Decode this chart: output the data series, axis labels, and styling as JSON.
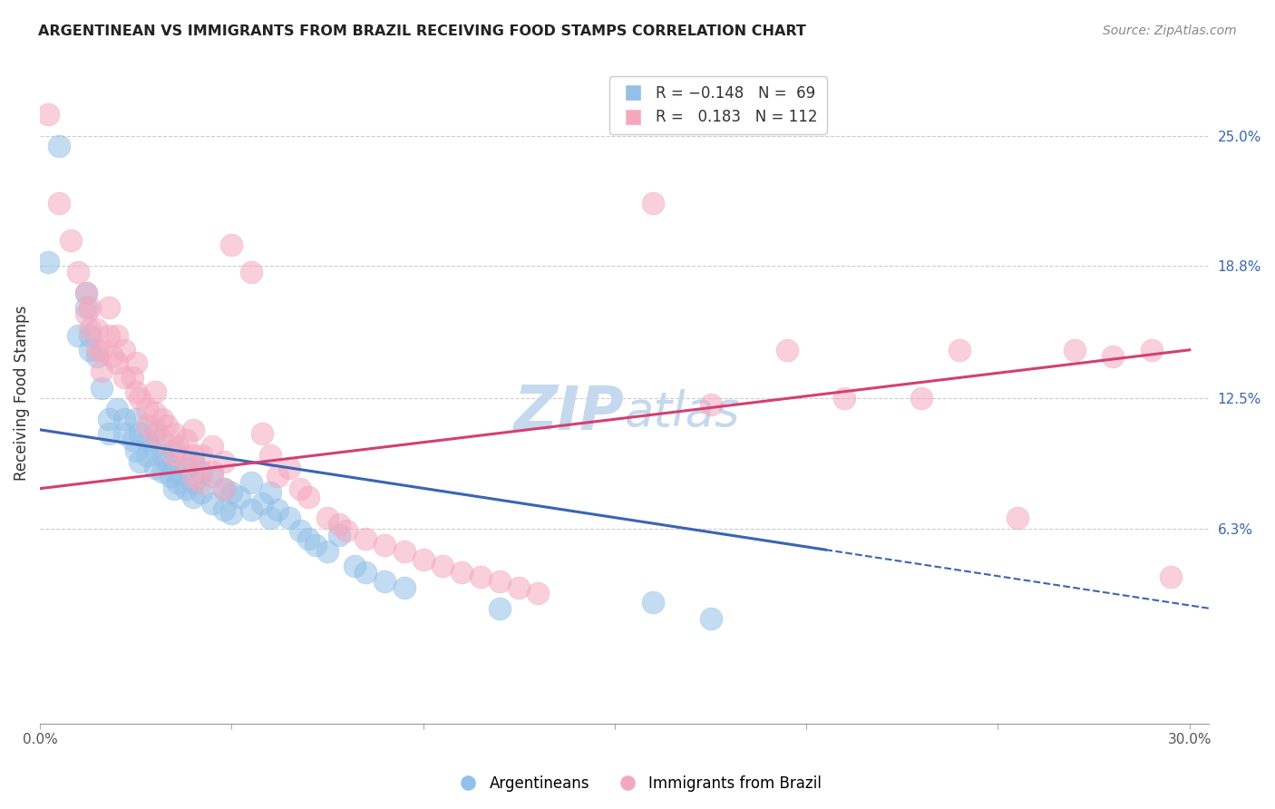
{
  "title": "ARGENTINEAN VS IMMIGRANTS FROM BRAZIL RECEIVING FOOD STAMPS CORRELATION CHART",
  "source": "Source: ZipAtlas.com",
  "ylabel": "Receiving Food Stamps",
  "ytick_labels": [
    "25.0%",
    "18.8%",
    "12.5%",
    "6.3%"
  ],
  "ytick_values": [
    0.25,
    0.188,
    0.125,
    0.063
  ],
  "xmin": 0.0,
  "xmax": 0.3,
  "ymin": -0.03,
  "ymax": 0.285,
  "color_blue": "#92C0E8",
  "color_pink": "#F4A8BE",
  "color_blue_line": "#3A65B0",
  "color_pink_line": "#D44070",
  "watermark_color": "#C5D8EE",
  "blue_scatter": [
    [
      0.002,
      0.19
    ],
    [
      0.005,
      0.245
    ],
    [
      0.01,
      0.155
    ],
    [
      0.012,
      0.175
    ],
    [
      0.012,
      0.168
    ],
    [
      0.013,
      0.155
    ],
    [
      0.013,
      0.148
    ],
    [
      0.015,
      0.145
    ],
    [
      0.016,
      0.13
    ],
    [
      0.018,
      0.115
    ],
    [
      0.018,
      0.108
    ],
    [
      0.02,
      0.12
    ],
    [
      0.022,
      0.115
    ],
    [
      0.022,
      0.108
    ],
    [
      0.024,
      0.105
    ],
    [
      0.025,
      0.115
    ],
    [
      0.025,
      0.1
    ],
    [
      0.026,
      0.108
    ],
    [
      0.026,
      0.095
    ],
    [
      0.028,
      0.105
    ],
    [
      0.028,
      0.098
    ],
    [
      0.03,
      0.11
    ],
    [
      0.03,
      0.102
    ],
    [
      0.03,
      0.092
    ],
    [
      0.032,
      0.098
    ],
    [
      0.032,
      0.09
    ],
    [
      0.033,
      0.095
    ],
    [
      0.034,
      0.088
    ],
    [
      0.035,
      0.1
    ],
    [
      0.035,
      0.09
    ],
    [
      0.035,
      0.082
    ],
    [
      0.036,
      0.085
    ],
    [
      0.038,
      0.092
    ],
    [
      0.038,
      0.082
    ],
    [
      0.04,
      0.095
    ],
    [
      0.04,
      0.085
    ],
    [
      0.04,
      0.078
    ],
    [
      0.042,
      0.09
    ],
    [
      0.042,
      0.08
    ],
    [
      0.045,
      0.088
    ],
    [
      0.045,
      0.075
    ],
    [
      0.048,
      0.082
    ],
    [
      0.048,
      0.072
    ],
    [
      0.05,
      0.08
    ],
    [
      0.05,
      0.07
    ],
    [
      0.052,
      0.078
    ],
    [
      0.055,
      0.085
    ],
    [
      0.055,
      0.072
    ],
    [
      0.058,
      0.075
    ],
    [
      0.06,
      0.08
    ],
    [
      0.06,
      0.068
    ],
    [
      0.062,
      0.072
    ],
    [
      0.065,
      0.068
    ],
    [
      0.068,
      0.062
    ],
    [
      0.07,
      0.058
    ],
    [
      0.072,
      0.055
    ],
    [
      0.075,
      0.052
    ],
    [
      0.078,
      0.06
    ],
    [
      0.082,
      0.045
    ],
    [
      0.085,
      0.042
    ],
    [
      0.09,
      0.038
    ],
    [
      0.095,
      0.035
    ],
    [
      0.12,
      0.025
    ],
    [
      0.16,
      0.028
    ],
    [
      0.175,
      0.02
    ]
  ],
  "pink_scatter": [
    [
      0.002,
      0.26
    ],
    [
      0.005,
      0.218
    ],
    [
      0.008,
      0.2
    ],
    [
      0.01,
      0.185
    ],
    [
      0.012,
      0.175
    ],
    [
      0.012,
      0.165
    ],
    [
      0.013,
      0.168
    ],
    [
      0.013,
      0.158
    ],
    [
      0.015,
      0.158
    ],
    [
      0.015,
      0.148
    ],
    [
      0.016,
      0.148
    ],
    [
      0.016,
      0.138
    ],
    [
      0.018,
      0.168
    ],
    [
      0.018,
      0.155
    ],
    [
      0.019,
      0.145
    ],
    [
      0.02,
      0.155
    ],
    [
      0.02,
      0.142
    ],
    [
      0.022,
      0.148
    ],
    [
      0.022,
      0.135
    ],
    [
      0.024,
      0.135
    ],
    [
      0.025,
      0.142
    ],
    [
      0.025,
      0.128
    ],
    [
      0.026,
      0.125
    ],
    [
      0.028,
      0.12
    ],
    [
      0.028,
      0.112
    ],
    [
      0.03,
      0.128
    ],
    [
      0.03,
      0.118
    ],
    [
      0.03,
      0.108
    ],
    [
      0.032,
      0.115
    ],
    [
      0.032,
      0.105
    ],
    [
      0.033,
      0.112
    ],
    [
      0.035,
      0.108
    ],
    [
      0.035,
      0.098
    ],
    [
      0.036,
      0.102
    ],
    [
      0.038,
      0.105
    ],
    [
      0.038,
      0.095
    ],
    [
      0.04,
      0.11
    ],
    [
      0.04,
      0.098
    ],
    [
      0.04,
      0.088
    ],
    [
      0.042,
      0.098
    ],
    [
      0.042,
      0.085
    ],
    [
      0.045,
      0.102
    ],
    [
      0.045,
      0.09
    ],
    [
      0.048,
      0.095
    ],
    [
      0.048,
      0.082
    ],
    [
      0.05,
      0.198
    ],
    [
      0.055,
      0.185
    ],
    [
      0.058,
      0.108
    ],
    [
      0.06,
      0.098
    ],
    [
      0.062,
      0.088
    ],
    [
      0.065,
      0.092
    ],
    [
      0.068,
      0.082
    ],
    [
      0.07,
      0.078
    ],
    [
      0.075,
      0.068
    ],
    [
      0.078,
      0.065
    ],
    [
      0.08,
      0.062
    ],
    [
      0.085,
      0.058
    ],
    [
      0.09,
      0.055
    ],
    [
      0.095,
      0.052
    ],
    [
      0.1,
      0.048
    ],
    [
      0.105,
      0.045
    ],
    [
      0.11,
      0.042
    ],
    [
      0.115,
      0.04
    ],
    [
      0.12,
      0.038
    ],
    [
      0.125,
      0.035
    ],
    [
      0.13,
      0.032
    ],
    [
      0.16,
      0.218
    ],
    [
      0.175,
      0.122
    ],
    [
      0.195,
      0.148
    ],
    [
      0.21,
      0.125
    ],
    [
      0.23,
      0.125
    ],
    [
      0.24,
      0.148
    ],
    [
      0.255,
      0.068
    ],
    [
      0.27,
      0.148
    ],
    [
      0.28,
      0.145
    ],
    [
      0.29,
      0.148
    ],
    [
      0.295,
      0.04
    ]
  ],
  "blue_line_x0": 0.0,
  "blue_line_x_solid_end": 0.205,
  "blue_line_x_dashed_end": 0.305,
  "blue_line_y0": 0.11,
  "blue_line_y_end": 0.025,
  "pink_line_x0": 0.0,
  "pink_line_x_end": 0.3,
  "pink_line_y0": 0.082,
  "pink_line_y_end": 0.148
}
